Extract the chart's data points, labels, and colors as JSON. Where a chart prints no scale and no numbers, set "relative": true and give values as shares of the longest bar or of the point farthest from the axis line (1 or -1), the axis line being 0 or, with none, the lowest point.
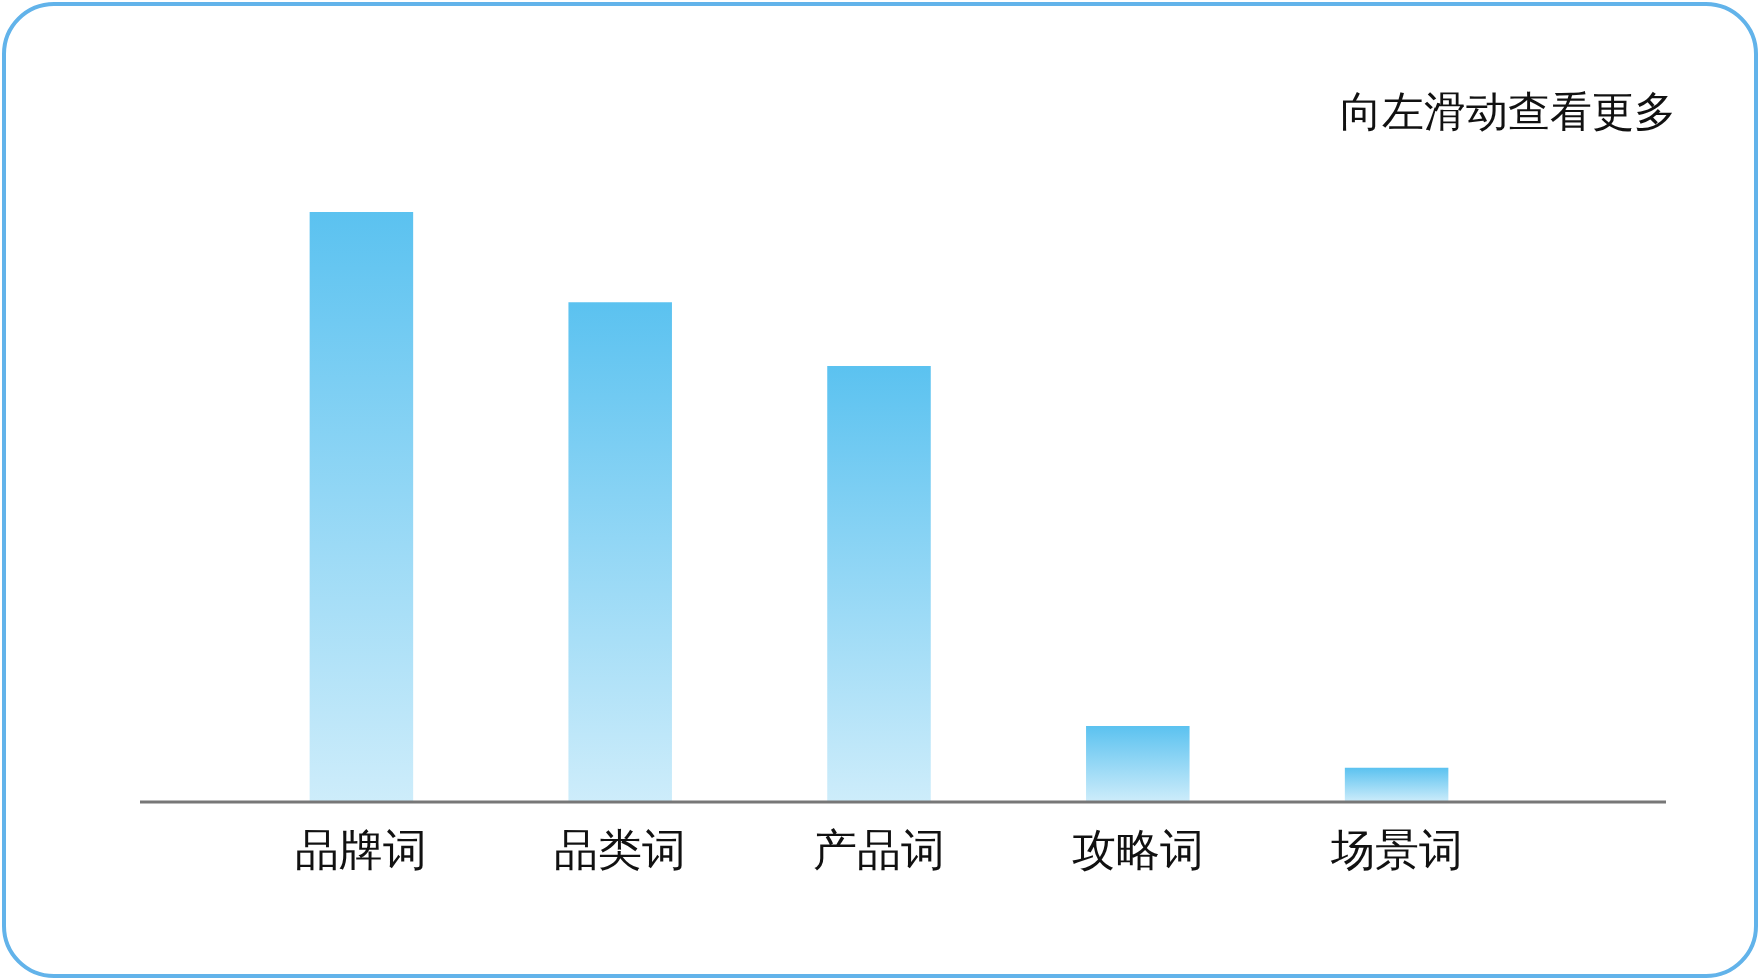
{
  "chart_data": {
    "type": "bar",
    "relative": true,
    "categories": [
      "品牌词",
      "品类词",
      "产品词",
      "攻略词",
      "场景词"
    ],
    "values": [
      1,
      0.847,
      0.739,
      0.129,
      0.058
    ],
    "color": "#5bc2f0",
    "annotations": [
      "向左滑动查看更多"
    ]
  }
}
